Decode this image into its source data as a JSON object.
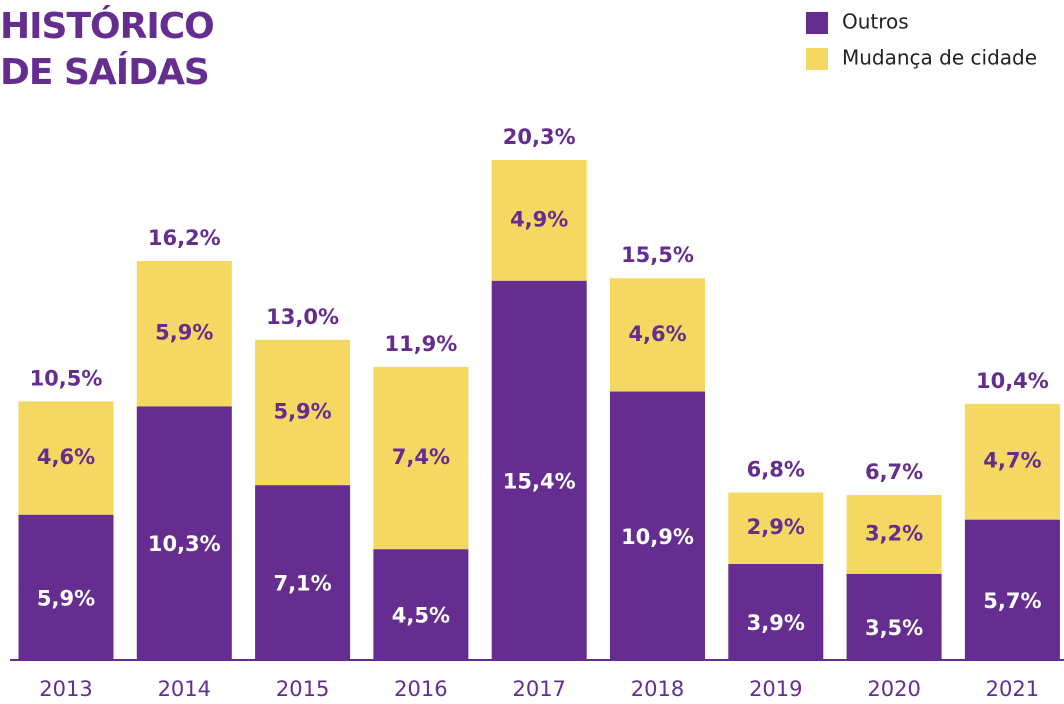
{
  "chart_data": {
    "type": "stacked-bar",
    "title": "HISTÓRICO DE SAÍDAS",
    "categories": [
      "2013",
      "2014",
      "2015",
      "2016",
      "2017",
      "2018",
      "2019",
      "2020",
      "2021"
    ],
    "series": [
      {
        "name": "Outros",
        "color": "#652d90",
        "values": [
          5.9,
          10.3,
          7.1,
          4.5,
          15.4,
          10.9,
          3.9,
          3.5,
          5.7
        ],
        "value_labels": [
          "5,9%",
          "10,3%",
          "7,1%",
          "4,5%",
          "15,4%",
          "10,9%",
          "3,9%",
          "3,5%",
          "5,7%"
        ]
      },
      {
        "name": "Mudança de cidade",
        "color": "#f4d862",
        "values": [
          4.6,
          5.9,
          5.9,
          7.4,
          4.9,
          4.6,
          2.9,
          3.2,
          4.7
        ],
        "value_labels": [
          "4,6%",
          "5,9%",
          "5,9%",
          "7,4%",
          "4,9%",
          "4,6%",
          "2,9%",
          "3,2%",
          "4,7%"
        ]
      }
    ],
    "totals": [
      10.5,
      16.2,
      13.0,
      11.9,
      20.3,
      15.5,
      6.8,
      6.7,
      10.4
    ],
    "total_labels": [
      "10,5%",
      "16,2%",
      "13,0%",
      "11,9%",
      "20,3%",
      "15,5%",
      "6,8%",
      "6,7%",
      "10,4%"
    ],
    "legend": "top-right"
  }
}
